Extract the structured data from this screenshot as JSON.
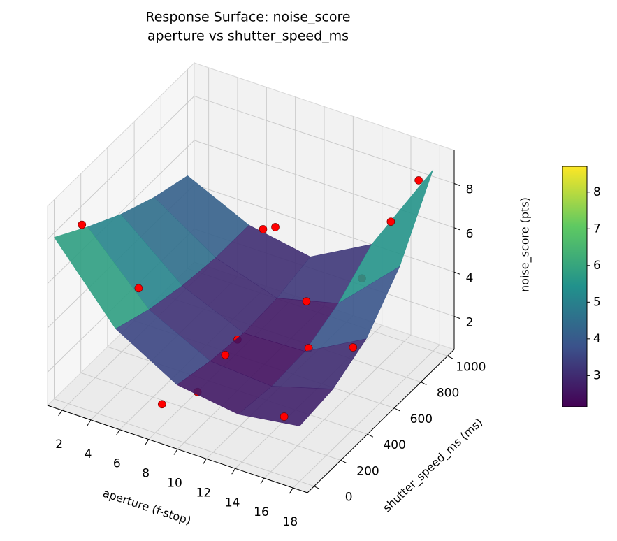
{
  "chart_data": {
    "type": "surface3d",
    "title": "Response Surface: noise_score",
    "subtitle": "aperture vs shutter_speed_ms",
    "x_label": "aperture (f-stop)",
    "y_label": "shutter_speed_ms (ms)",
    "z_label": "noise_score (pts)",
    "xlim": [
      1,
      19
    ],
    "ylim": [
      -50,
      1050
    ],
    "zlim": [
      0.5,
      9.5
    ],
    "xticks": [
      2,
      4,
      6,
      8,
      10,
      12,
      14,
      16,
      18
    ],
    "yticks": [
      0,
      200,
      400,
      600,
      800,
      1000
    ],
    "zticks": [
      2,
      4,
      6,
      8
    ],
    "surface": {
      "x": [
        1,
        5.25,
        9.5,
        13.75,
        18
      ],
      "y": [
        0,
        250,
        500,
        750,
        1000
      ],
      "z": [
        [
          7.8,
          4.6,
          3.0,
          2.6,
          3.0
        ],
        [
          6.8,
          4.0,
          2.6,
          2.4,
          3.2
        ],
        [
          5.9,
          3.6,
          2.4,
          2.5,
          4.0
        ],
        [
          5.2,
          3.4,
          2.5,
          3.2,
          5.8
        ],
        [
          4.7,
          3.4,
          2.9,
          4.4,
          8.7
        ]
      ]
    },
    "points": {
      "color": "#ff0000",
      "x": [
        2,
        5,
        8,
        9,
        10,
        10,
        12,
        14,
        14,
        16,
        17,
        16,
        8,
        11,
        18
      ],
      "y": [
        100,
        200,
        900,
        700,
        400,
        100,
        700,
        900,
        500,
        900,
        1000,
        100,
        50,
        200,
        400
      ],
      "z": [
        8.0,
        5.2,
        4.5,
        5.8,
        2.8,
        2.2,
        3.2,
        3.5,
        2.7,
        6.5,
        8.0,
        2.4,
        1.5,
        3.5,
        4.2
      ]
    },
    "colorbar": {
      "lim": [
        2.15,
        8.7
      ],
      "ticks": [
        3,
        4,
        5,
        6,
        7,
        8
      ],
      "colors": [
        "#440154",
        "#3b528b",
        "#21918c",
        "#5ec962",
        "#fde725"
      ]
    }
  }
}
